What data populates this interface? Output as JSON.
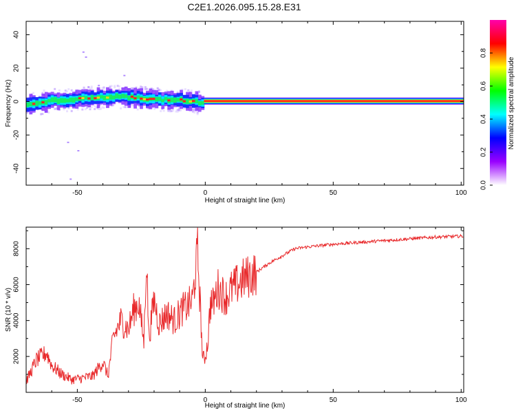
{
  "title": "C2E1.2026.095.15.28.E31",
  "chart_data": [
    {
      "id": "spectrogram",
      "type": "heatmap",
      "title": "",
      "xlabel": "Height of straight line (km)",
      "ylabel": "Frequency (Hz)",
      "xlim": [
        -70,
        101
      ],
      "ylim": [
        -50,
        48
      ],
      "xticks": [
        -50,
        0,
        50,
        100
      ],
      "yticks": [
        -40,
        -20,
        0,
        20,
        40
      ],
      "grid": false,
      "colorbar": {
        "label": "Normalized spectral amplitude",
        "range": [
          0,
          1
        ],
        "ticks": [
          0.0,
          0.2,
          0.4,
          0.6,
          0.8
        ],
        "colors": [
          "#ffffff",
          "#9900ff",
          "#0000ff",
          "#00ffff",
          "#00ff00",
          "#ffff00",
          "#ff0000",
          "#ff00aa"
        ]
      },
      "ridge": {
        "x": [
          -70,
          -65,
          -60,
          -55,
          -50,
          -45,
          -40,
          -35,
          -30,
          -25,
          -20,
          -15,
          -10,
          -5,
          -3,
          0,
          10,
          25,
          50,
          75,
          101
        ],
        "freq": [
          -2,
          -1,
          1,
          0.5,
          1.5,
          2,
          2.5,
          3,
          2.5,
          2,
          1.5,
          1,
          0.8,
          0.5,
          -1,
          0.3,
          0.3,
          0.3,
          0.3,
          0.3,
          0.3
        ]
      }
    },
    {
      "id": "snr",
      "type": "line",
      "title": "",
      "xlabel": "Height of straight line (km)",
      "ylabel": "SNR (10 * v/v)",
      "xlim": [
        -70,
        101
      ],
      "ylim": [
        0,
        9200
      ],
      "xticks": [
        -50,
        0,
        50,
        100
      ],
      "yticks": [
        2000,
        4000,
        6000,
        8000
      ],
      "grid": false,
      "series": [
        {
          "name": "SNR",
          "color": "#e8282a",
          "x": [
            -70,
            -66,
            -62,
            -60,
            -56,
            -52,
            -48,
            -44,
            -40,
            -38,
            -36,
            -33,
            -30,
            -28,
            -26,
            -24,
            -23,
            -22,
            -20,
            -18,
            -15,
            -12,
            -9,
            -7,
            -5,
            -3,
            -2,
            -1,
            0,
            1,
            2,
            3,
            5,
            8,
            10,
            15,
            20,
            25,
            30,
            35,
            40,
            50,
            60,
            70,
            80,
            90,
            101
          ],
          "y": [
            600,
            1800,
            2200,
            1500,
            1000,
            700,
            800,
            900,
            1700,
            900,
            3000,
            4000,
            3500,
            4600,
            5000,
            2800,
            7600,
            3000,
            5200,
            3800,
            4400,
            4000,
            4600,
            4800,
            5100,
            7800,
            5000,
            1800,
            2000,
            2800,
            5000,
            4900,
            5800,
            5300,
            5700,
            6300,
            6700,
            7200,
            7600,
            8000,
            8100,
            8250,
            8350,
            8450,
            8550,
            8650,
            8700
          ]
        }
      ]
    }
  ]
}
